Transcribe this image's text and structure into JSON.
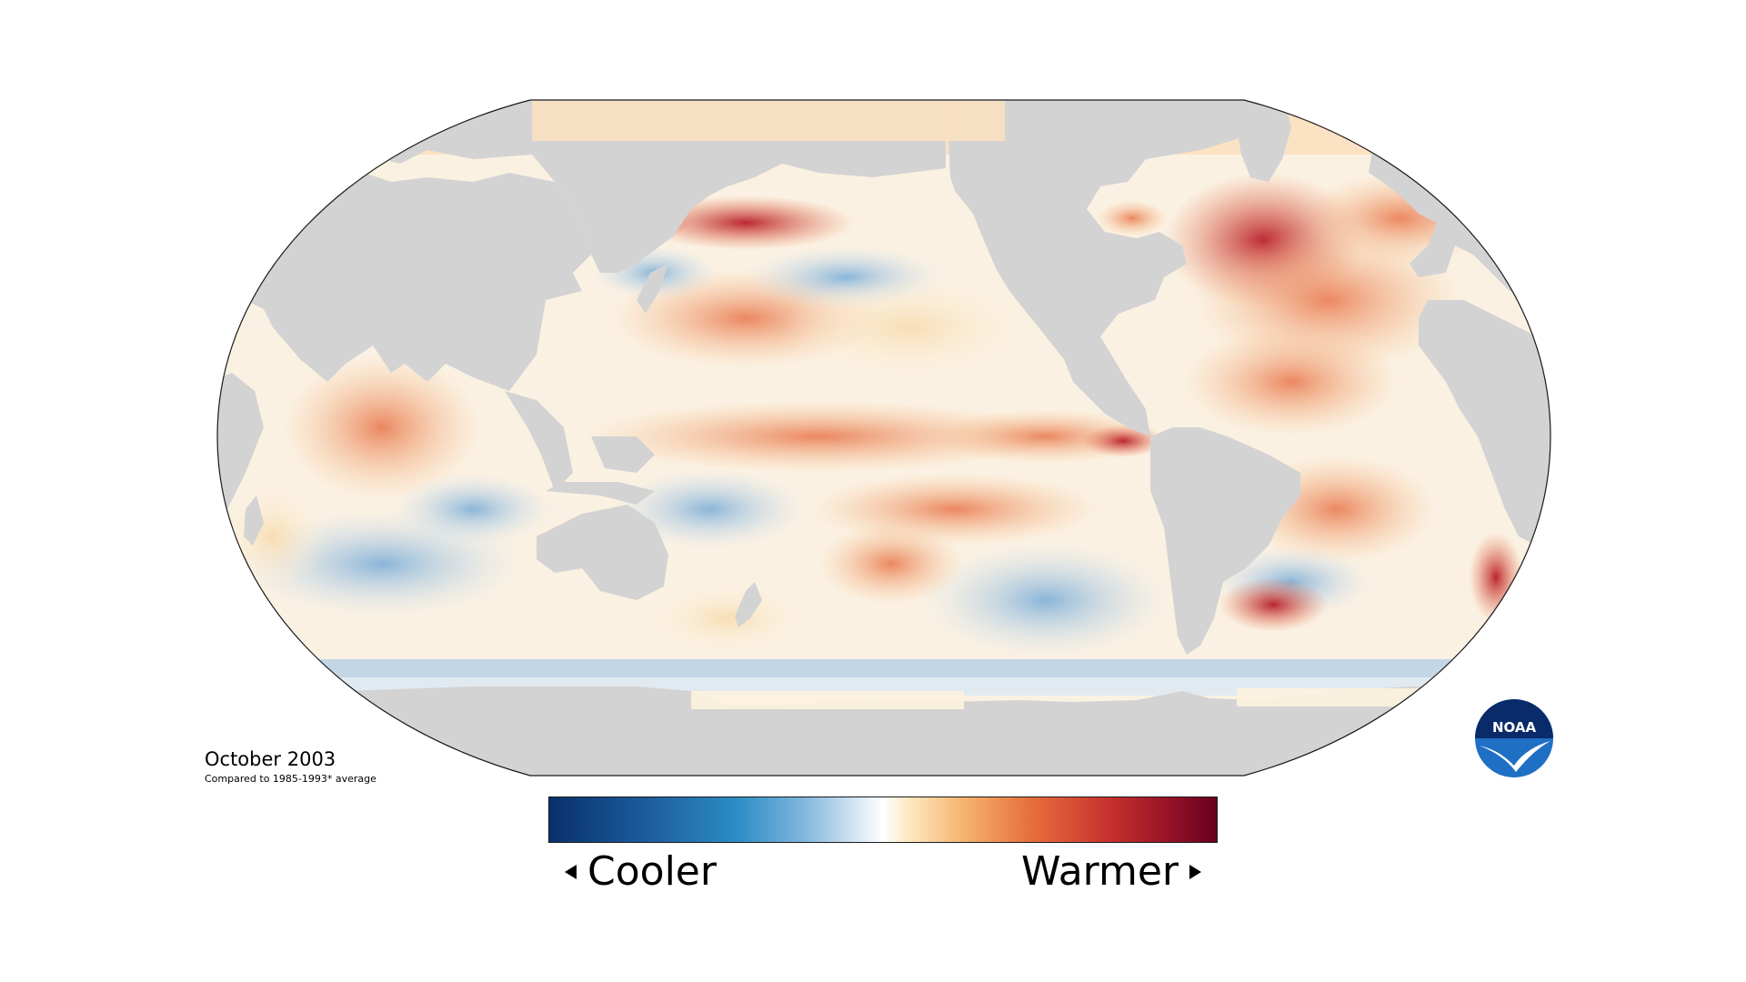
{
  "map": {
    "period": "October 2003",
    "baseline_note": "Compared to 1985-1993* average",
    "legend": {
      "cooler_label": "Cooler",
      "warmer_label": "Warmer"
    },
    "colors": {
      "land": "#d3d3d3",
      "ocean_neutral": "#fdfaf0",
      "anomaly_cold": "#2b8cc4",
      "anomaly_warm": "#d7301f"
    },
    "icons": [
      "noaa-logo",
      "left-arrow-icon",
      "right-arrow-icon"
    ],
    "logo_text": "NOAA"
  }
}
